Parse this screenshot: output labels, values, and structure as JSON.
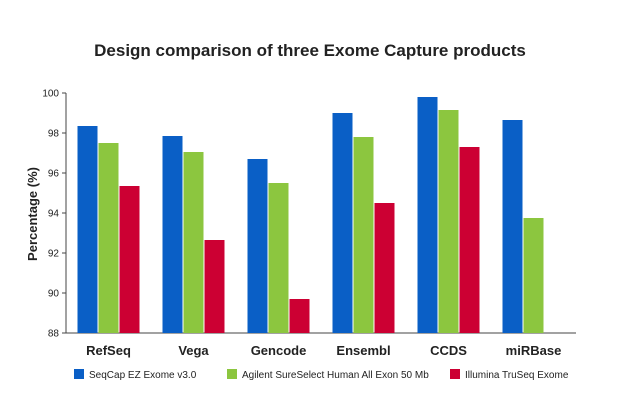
{
  "chart_data": {
    "type": "bar",
    "title": "Design comparison of three Exome Capture products",
    "xlabel": "",
    "ylabel": "Percentage (%)",
    "ylim": [
      88,
      100
    ],
    "yticks": [
      88,
      90,
      92,
      94,
      96,
      98,
      100
    ],
    "categories": [
      "RefSeq",
      "Vega",
      "Gencode",
      "Ensembl",
      "CCDS",
      "miRBase"
    ],
    "series": [
      {
        "name": "SeqCap EZ Exome v3.0",
        "color": "#0a5fc6",
        "values": [
          98.35,
          97.85,
          96.7,
          99.0,
          99.8,
          98.65
        ]
      },
      {
        "name": "Agilent SureSelect Human All Exon 50 Mb",
        "color": "#8cc63f",
        "values": [
          97.5,
          97.05,
          95.5,
          97.8,
          99.15,
          93.75
        ]
      },
      {
        "name": "Illumina TruSeq Exome",
        "color": "#cc0033",
        "values": [
          95.35,
          92.65,
          89.7,
          94.5,
          97.3,
          null
        ]
      }
    ],
    "legend_position": "bottom",
    "grid": false
  }
}
